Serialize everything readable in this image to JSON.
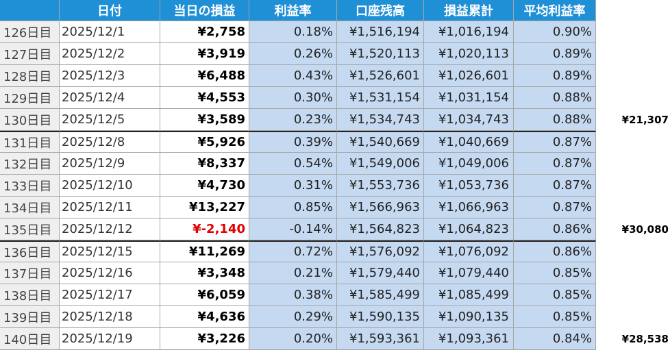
{
  "header": [
    "",
    "日付",
    "当日の損益",
    "利益率",
    "口座残高",
    "損益累計",
    "平均利益率",
    ""
  ],
  "rows": [
    {
      "day": "126日目",
      "date": "2025/12/1",
      "pl": "¥2,758",
      "rate": "0.18%",
      "balance": "¥1,516,194",
      "cumulative": "¥1,016,194",
      "avg": "0.90%",
      "weekly": ""
    },
    {
      "day": "127日目",
      "date": "2025/12/2",
      "pl": "¥3,919",
      "rate": "0.26%",
      "balance": "¥1,520,113",
      "cumulative": "¥1,020,113",
      "avg": "0.89%",
      "weekly": ""
    },
    {
      "day": "128日目",
      "date": "2025/12/3",
      "pl": "¥6,488",
      "rate": "0.43%",
      "balance": "¥1,526,601",
      "cumulative": "¥1,026,601",
      "avg": "0.89%",
      "weekly": ""
    },
    {
      "day": "129日目",
      "date": "2025/12/4",
      "pl": "¥4,553",
      "rate": "0.30%",
      "balance": "¥1,531,154",
      "cumulative": "¥1,031,154",
      "avg": "0.88%",
      "weekly": ""
    },
    {
      "day": "130日目",
      "date": "2025/12/5",
      "pl": "¥3,589",
      "rate": "0.23%",
      "balance": "¥1,534,743",
      "cumulative": "¥1,034,743",
      "avg": "0.88%",
      "weekly": "¥21,307"
    },
    {
      "day": "131日目",
      "date": "2025/12/8",
      "pl": "¥5,926",
      "rate": "0.39%",
      "balance": "¥1,540,669",
      "cumulative": "¥1,040,669",
      "avg": "0.87%",
      "weekly": ""
    },
    {
      "day": "132日目",
      "date": "2025/12/9",
      "pl": "¥8,337",
      "rate": "0.54%",
      "balance": "¥1,549,006",
      "cumulative": "¥1,049,006",
      "avg": "0.87%",
      "weekly": ""
    },
    {
      "day": "133日目",
      "date": "2025/12/10",
      "pl": "¥4,730",
      "rate": "0.31%",
      "balance": "¥1,553,736",
      "cumulative": "¥1,053,736",
      "avg": "0.87%",
      "weekly": ""
    },
    {
      "day": "134日目",
      "date": "2025/12/11",
      "pl": "¥13,227",
      "rate": "0.85%",
      "balance": "¥1,566,963",
      "cumulative": "¥1,066,963",
      "avg": "0.87%",
      "weekly": ""
    },
    {
      "day": "135日目",
      "date": "2025/12/12",
      "pl": "¥-2,140",
      "rate": "-0.14%",
      "balance": "¥1,564,823",
      "cumulative": "¥1,064,823",
      "avg": "0.86%",
      "weekly": "¥30,080",
      "negative": true
    },
    {
      "day": "136日目",
      "date": "2025/12/15",
      "pl": "¥11,269",
      "rate": "0.72%",
      "balance": "¥1,576,092",
      "cumulative": "¥1,076,092",
      "avg": "0.86%",
      "weekly": ""
    },
    {
      "day": "137日目",
      "date": "2025/12/16",
      "pl": "¥3,348",
      "rate": "0.21%",
      "balance": "¥1,579,440",
      "cumulative": "¥1,079,440",
      "avg": "0.85%",
      "weekly": ""
    },
    {
      "day": "138日目",
      "date": "2025/12/17",
      "pl": "¥6,059",
      "rate": "0.38%",
      "balance": "¥1,585,499",
      "cumulative": "¥1,085,499",
      "avg": "0.85%",
      "weekly": ""
    },
    {
      "day": "139日目",
      "date": "2025/12/18",
      "pl": "¥4,636",
      "rate": "0.29%",
      "balance": "¥1,590,135",
      "cumulative": "¥1,090,135",
      "avg": "0.85%",
      "weekly": ""
    },
    {
      "day": "140日目",
      "date": "2025/12/19",
      "pl": "¥3,226",
      "rate": "0.20%",
      "balance": "¥1,593,361",
      "cumulative": "¥1,093,361",
      "avg": "0.84%",
      "weekly": "¥28,538"
    }
  ],
  "colors": {
    "header_bg": "#1f8fd6",
    "highlight_bg": "#c5d9f1",
    "row_header_bg": "#efefef",
    "negative": "#e00000"
  }
}
